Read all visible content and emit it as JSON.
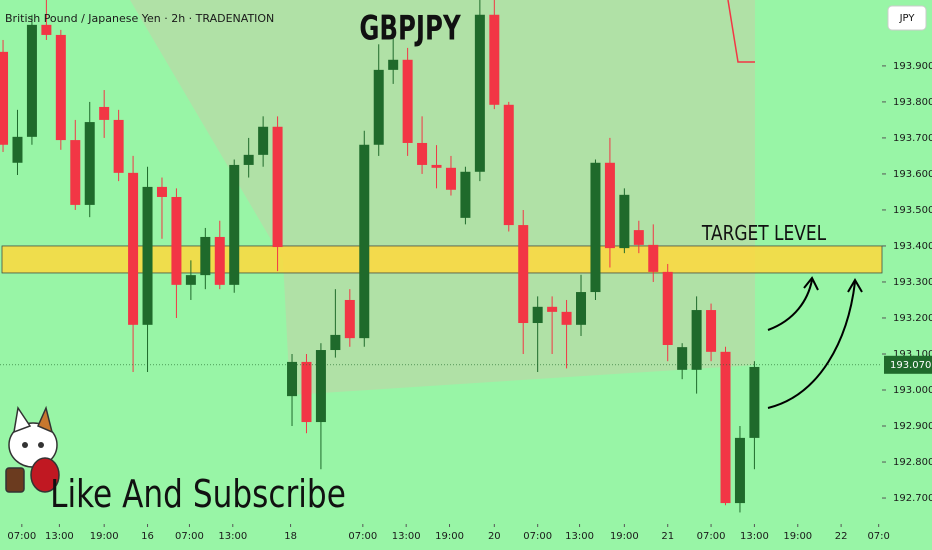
{
  "chart_data": {
    "type": "candlestick",
    "subtitle": "British Pound / Japanese Yen · 2h · TRADENATION",
    "title": "GBPJPY",
    "annotation": "TARGET LEVEL",
    "caption": "Like And Subscribe",
    "currency_button": "JPY",
    "current_price": {
      "value": 193.07,
      "label": "193.070"
    },
    "target_zone": [
      193.325,
      193.4
    ],
    "up_color": "#1f6a2b",
    "down_color": "#f23645",
    "ylim": [
      192.639,
      194.083
    ],
    "xlim": [
      -0.21,
      60.83
    ],
    "yticks": [
      {
        "value": 193.9,
        "label": "193.900"
      },
      {
        "value": 193.8,
        "label": "193.800"
      },
      {
        "value": 193.7,
        "label": "193.700"
      },
      {
        "value": 193.6,
        "label": "193.600"
      },
      {
        "value": 193.5,
        "label": "193.500"
      },
      {
        "value": 193.4,
        "label": "193.400"
      },
      {
        "value": 193.3,
        "label": "193.300"
      },
      {
        "value": 193.2,
        "label": "193.200"
      },
      {
        "value": 193.1,
        "label": "193.100"
      },
      {
        "value": 193.0,
        "label": "193.000"
      },
      {
        "value": 192.9,
        "label": "192.900"
      },
      {
        "value": 192.8,
        "label": "192.800"
      },
      {
        "value": 192.7,
        "label": "192.700"
      }
    ],
    "xticks": [
      {
        "value": 1.3,
        "label": "07:00"
      },
      {
        "value": 3.9,
        "label": "13:00"
      },
      {
        "value": 7,
        "label": "19:00"
      },
      {
        "value": 10,
        "label": "16"
      },
      {
        "value": 12.9,
        "label": "07:00"
      },
      {
        "value": 15.9,
        "label": "13:00"
      },
      {
        "value": 19.9,
        "label": "18"
      },
      {
        "value": 24.9,
        "label": "07:00"
      },
      {
        "value": 27.9,
        "label": "13:00"
      },
      {
        "value": 30.9,
        "label": "19:00"
      },
      {
        "value": 34,
        "label": "20"
      },
      {
        "value": 37,
        "label": "07:00"
      },
      {
        "value": 39.9,
        "label": "13:00"
      },
      {
        "value": 43,
        "label": "19:00"
      },
      {
        "value": 46,
        "label": "21"
      },
      {
        "value": 49,
        "label": "07:00"
      },
      {
        "value": 52,
        "label": "13:00"
      },
      {
        "value": 55,
        "label": "19:00"
      },
      {
        "value": 58,
        "label": "22"
      },
      {
        "value": 60.6,
        "label": "07:0"
      }
    ],
    "open": [
      193.939,
      193.631,
      193.703,
      194.014,
      193.986,
      193.694,
      193.514,
      193.786,
      193.75,
      193.603,
      193.181,
      193.564,
      193.536,
      193.292,
      193.319,
      193.425,
      193.292,
      193.625,
      193.653,
      193.731,
      192.983,
      193.078,
      192.911,
      193.111,
      193.25,
      193.144,
      193.681,
      193.889,
      193.917,
      193.686,
      193.625,
      193.617,
      193.478,
      193.606,
      194.042,
      193.792,
      193.458,
      193.186,
      193.231,
      193.217,
      193.181,
      193.272,
      193.631,
      193.394,
      193.444,
      193.403,
      193.328,
      193.056,
      193.056,
      193.222,
      193.106,
      192.686,
      192.867
    ],
    "high": [
      193.972,
      193.778,
      194.042,
      194.083,
      194.0,
      193.75,
      193.8,
      193.833,
      193.778,
      193.65,
      193.62,
      193.59,
      193.56,
      193.36,
      193.45,
      193.47,
      193.64,
      193.7,
      193.76,
      193.76,
      193.1,
      193.1,
      193.13,
      193.28,
      193.28,
      193.72,
      193.96,
      194.0,
      193.95,
      193.76,
      193.68,
      193.65,
      193.62,
      194.083,
      194.083,
      193.8,
      193.5,
      193.26,
      193.26,
      193.25,
      193.32,
      193.64,
      193.7,
      193.56,
      193.47,
      193.46,
      193.35,
      193.13,
      193.26,
      193.24,
      193.12,
      192.9,
      193.08
    ],
    "low": [
      193.661,
      193.597,
      193.681,
      193.972,
      193.667,
      193.5,
      193.48,
      193.7,
      193.58,
      193.05,
      193.05,
      193.42,
      193.2,
      193.25,
      193.28,
      193.28,
      193.27,
      193.59,
      193.62,
      193.33,
      192.9,
      192.88,
      192.78,
      193.09,
      193.12,
      193.12,
      193.65,
      193.85,
      193.65,
      193.6,
      193.56,
      193.54,
      193.46,
      193.58,
      193.78,
      193.44,
      193.1,
      193.05,
      193.1,
      193.06,
      193.15,
      193.25,
      193.34,
      193.38,
      193.38,
      193.3,
      193.08,
      193.03,
      192.99,
      193.08,
      192.68,
      192.66,
      192.78
    ],
    "close": [
      193.681,
      193.703,
      194.014,
      193.986,
      193.694,
      193.514,
      193.744,
      193.75,
      193.603,
      193.181,
      193.564,
      193.536,
      193.292,
      193.319,
      193.425,
      193.292,
      193.625,
      193.653,
      193.731,
      193.397,
      193.078,
      192.911,
      193.111,
      193.153,
      193.144,
      193.681,
      193.889,
      193.917,
      193.686,
      193.625,
      193.617,
      193.556,
      193.606,
      194.042,
      193.792,
      193.458,
      193.186,
      193.231,
      193.217,
      193.181,
      193.272,
      193.631,
      193.394,
      193.542,
      193.403,
      193.328,
      193.125,
      193.119,
      193.222,
      193.106,
      192.686,
      192.867,
      193.064
    ]
  }
}
